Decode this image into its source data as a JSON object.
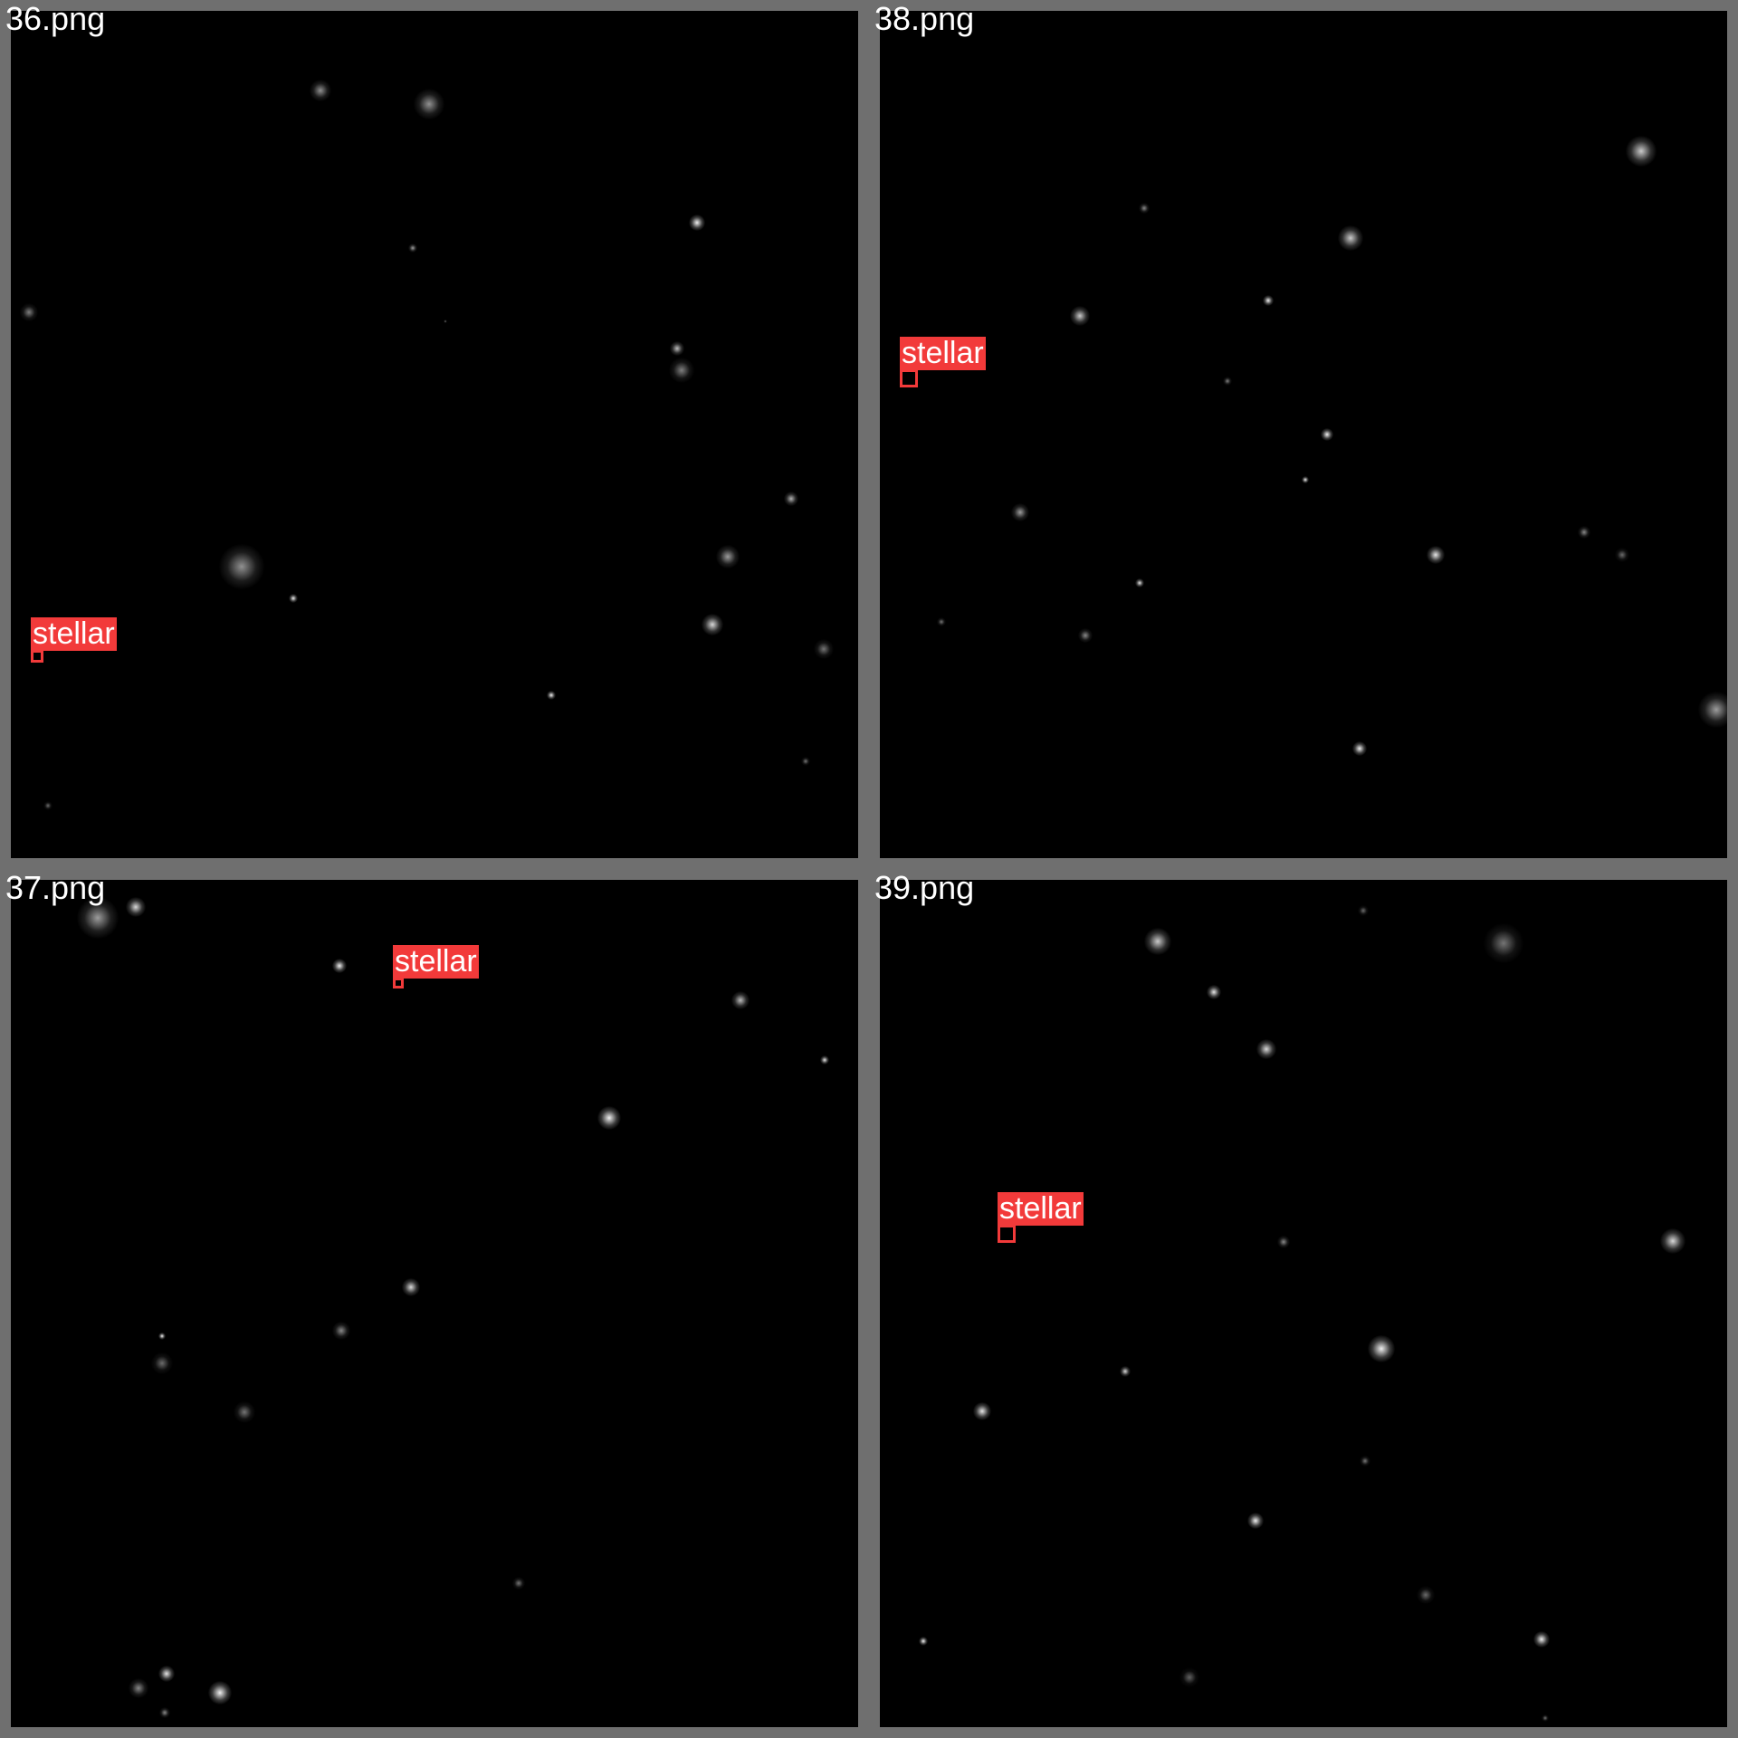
{
  "panels": [
    {
      "filename": "36.png",
      "detection": {
        "label": "stellar"
      }
    },
    {
      "filename": "38.png",
      "detection": {
        "label": "stellar"
      }
    },
    {
      "filename": "37.png",
      "detection": {
        "label": "stellar"
      }
    },
    {
      "filename": "39.png",
      "detection": {
        "label": "stellar"
      }
    }
  ],
  "colors": {
    "frame": "#6f6f6f",
    "background": "#000000",
    "detection": "#f23a3a",
    "text": "#ffffff"
  }
}
